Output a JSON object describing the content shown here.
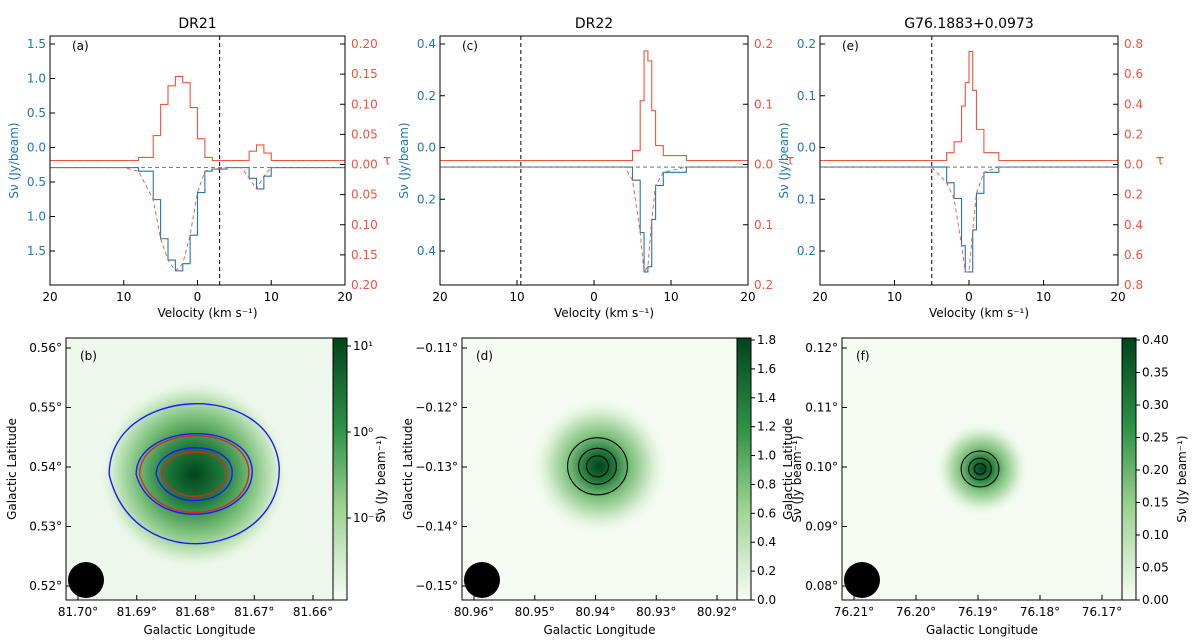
{
  "colors": {
    "blue": "#1f77b4",
    "red": "#f0543c",
    "contour_blue": "#1a1aff",
    "contour_red": "#d62728",
    "green_dark": "#00441b"
  },
  "chart_data": [
    {
      "panel_label": "(a)",
      "title": "DR21",
      "type": "line",
      "xlabel": "Velocity (km s⁻¹)",
      "ylabel": "Sν (Jy/beam)",
      "ylabel2": "τ",
      "xlim": [
        20,
        -20
      ],
      "ylim": [
        1.65,
        -1.85
      ],
      "ylim2": [
        0.2,
        -0.2
      ],
      "xticks": [
        "20",
        "10",
        "0",
        "−10",
        "−20"
      ],
      "yticks": [
        "1.5",
        "1.0",
        "0.5",
        "0.0",
        "0.5",
        "1.0",
        "1.5"
      ],
      "y2ticks": [
        "0.20",
        "0.15",
        "0.10",
        "0.05",
        "0.00",
        "0.05",
        "0.10",
        "0.15",
        "0.20"
      ],
      "vline": -3,
      "series": [
        {
          "color_key": "blue",
          "x": [
            20,
            15,
            10,
            8,
            6,
            5,
            4,
            3,
            2,
            1,
            0,
            -1,
            -2,
            -4,
            -6,
            -7,
            -8,
            -9,
            -10,
            -12,
            -20
          ],
          "y": [
            0,
            0,
            0,
            0.05,
            0.45,
            1.0,
            1.3,
            1.45,
            1.35,
            0.95,
            0.35,
            0.05,
            0.02,
            0,
            0,
            0.15,
            0.3,
            0.12,
            0,
            0,
            0
          ]
        },
        {
          "color_key": "red",
          "x": [
            20,
            15,
            10,
            8,
            6,
            5,
            4,
            3,
            2,
            1,
            0,
            -1,
            -2,
            -4,
            -6,
            -7,
            -8,
            -9,
            -10,
            -12,
            -20
          ],
          "y": [
            0,
            0,
            0,
            0.005,
            0.04,
            0.09,
            0.12,
            0.135,
            0.125,
            0.085,
            0.035,
            0.005,
            0,
            0,
            0,
            0.015,
            0.025,
            0.012,
            0,
            0,
            0
          ]
        }
      ]
    },
    {
      "panel_label": "(c)",
      "title": "DR22",
      "type": "line",
      "xlabel": "Velocity (km s⁻¹)",
      "ylabel": "Sν (Jy/beam)",
      "ylabel2": "τ",
      "xlim": [
        20,
        -20
      ],
      "ylim": [
        0.45,
        -0.5
      ],
      "ylim2": [
        0.25,
        -0.25
      ],
      "xticks": [
        "20",
        "10",
        "0",
        "−10",
        "−20"
      ],
      "yticks": [
        "0.4",
        "0.2",
        "0.0",
        "0.2",
        "0.4"
      ],
      "y2ticks": [
        "0.2",
        "0.1",
        "0.0",
        "0.1",
        "0.2"
      ],
      "vline": 9.5,
      "series": [
        {
          "color_key": "blue",
          "x": [
            20,
            10,
            0,
            -4,
            -5,
            -6,
            -6.5,
            -7,
            -7.5,
            -8,
            -9,
            -12,
            -20
          ],
          "y": [
            0,
            0,
            0,
            0,
            0.05,
            0.25,
            0.4,
            0.38,
            0.2,
            0.07,
            0.02,
            0,
            0
          ]
        },
        {
          "color_key": "red",
          "x": [
            20,
            10,
            0,
            -4,
            -5,
            -6,
            -6.5,
            -7,
            -7.5,
            -8,
            -9,
            -12,
            -20
          ],
          "y": [
            0,
            0,
            0,
            0,
            0.02,
            0.12,
            0.22,
            0.2,
            0.1,
            0.03,
            0.01,
            0,
            0
          ]
        }
      ]
    },
    {
      "panel_label": "(e)",
      "title": "G76.1883+0.0973",
      "type": "line",
      "xlabel": "Velocity (km s⁻¹)",
      "ylabel": "Sν (Jy/beam)",
      "ylabel2": "τ",
      "xlim": [
        20,
        -20
      ],
      "ylim": [
        0.225,
        -0.25
      ],
      "ylim2": [
        0.8,
        -0.8
      ],
      "xticks": [
        "20",
        "10",
        "0",
        "−10",
        "−20"
      ],
      "yticks": [
        "0.2",
        "0.1",
        "0.0",
        "0.1",
        "0.2"
      ],
      "y2ticks": [
        "0.8",
        "0.6",
        "0.4",
        "0.2",
        "0.0",
        "0.2",
        "0.4",
        "0.6",
        "0.8"
      ],
      "vline": 5,
      "series": [
        {
          "color_key": "blue",
          "x": [
            20,
            10,
            5,
            3,
            2,
            1,
            0.5,
            0,
            -0.5,
            -1,
            -2,
            -4,
            -10,
            -20
          ],
          "y": [
            0,
            0,
            0,
            0.03,
            0.06,
            0.15,
            0.2,
            0.2,
            0.12,
            0.05,
            0.01,
            0,
            0,
            0
          ]
        },
        {
          "color_key": "red",
          "x": [
            20,
            10,
            5,
            3,
            2,
            1,
            0.5,
            0,
            -0.5,
            -1,
            -2,
            -4,
            -10,
            -20
          ],
          "y": [
            0,
            0,
            0,
            0.05,
            0.12,
            0.35,
            0.5,
            0.7,
            0.45,
            0.2,
            0.05,
            0,
            0,
            0
          ]
        }
      ]
    },
    {
      "panel_label": "(b)",
      "type": "heatmap",
      "xlabel": "Galactic Longitude",
      "ylabel": "Galactic Latitude",
      "xlim": [
        81.705,
        81.655
      ],
      "ylim": [
        0.515,
        0.562
      ],
      "xticks": [
        "81.70°",
        "81.69°",
        "81.68°",
        "81.67°",
        "81.66°"
      ],
      "yticks": [
        "0.52°",
        "0.53°",
        "0.54°",
        "0.55°",
        "0.56°"
      ],
      "colorbar_label": "Sν (Jy beam⁻¹)",
      "colorbar_scale": "log",
      "colorbar_ticks": [
        "10¹",
        "10⁰",
        "10⁻¹"
      ],
      "peak": [
        81.681,
        0.5375
      ]
    },
    {
      "panel_label": "(d)",
      "type": "heatmap",
      "xlabel": "Galactic Longitude",
      "ylabel": "Galactic Latitude",
      "xlim": [
        80.962,
        80.913
      ],
      "ylim": [
        -0.152,
        -0.104
      ],
      "xticks": [
        "80.96°",
        "80.95°",
        "80.94°",
        "80.93°",
        "80.92°"
      ],
      "yticks": [
        "−0.15°",
        "−0.14°",
        "−0.13°",
        "−0.12°",
        "−0.11°"
      ],
      "colorbar_label": "Sν (Jy beam⁻¹)",
      "colorbar_scale": "linear",
      "colorbar_ticks": [
        "1.8",
        "1.6",
        "1.4",
        "1.2",
        "1.0",
        "0.8",
        "0.6",
        "0.4",
        "0.2",
        "0.0"
      ],
      "peak": [
        80.9375,
        -0.1275
      ]
    },
    {
      "panel_label": "(f)",
      "type": "heatmap",
      "xlabel": "Galactic Longitude",
      "ylabel": "Galactic Latitude",
      "xlim": [
        76.214,
        76.163
      ],
      "ylim": [
        0.073,
        0.122
      ],
      "xticks": [
        "76.21°",
        "76.20°",
        "76.19°",
        "76.18°",
        "76.17°"
      ],
      "yticks": [
        "0.08°",
        "0.09°",
        "0.10°",
        "0.11°",
        "0.12°"
      ],
      "colorbar_label": "Sν (Jy beam⁻¹)",
      "colorbar_scale": "linear",
      "colorbar_ticks": [
        "0.40",
        "0.35",
        "0.30",
        "0.25",
        "0.20",
        "0.15",
        "0.10",
        "0.05",
        "0.00"
      ],
      "peak": [
        76.1885,
        0.0975
      ]
    }
  ]
}
